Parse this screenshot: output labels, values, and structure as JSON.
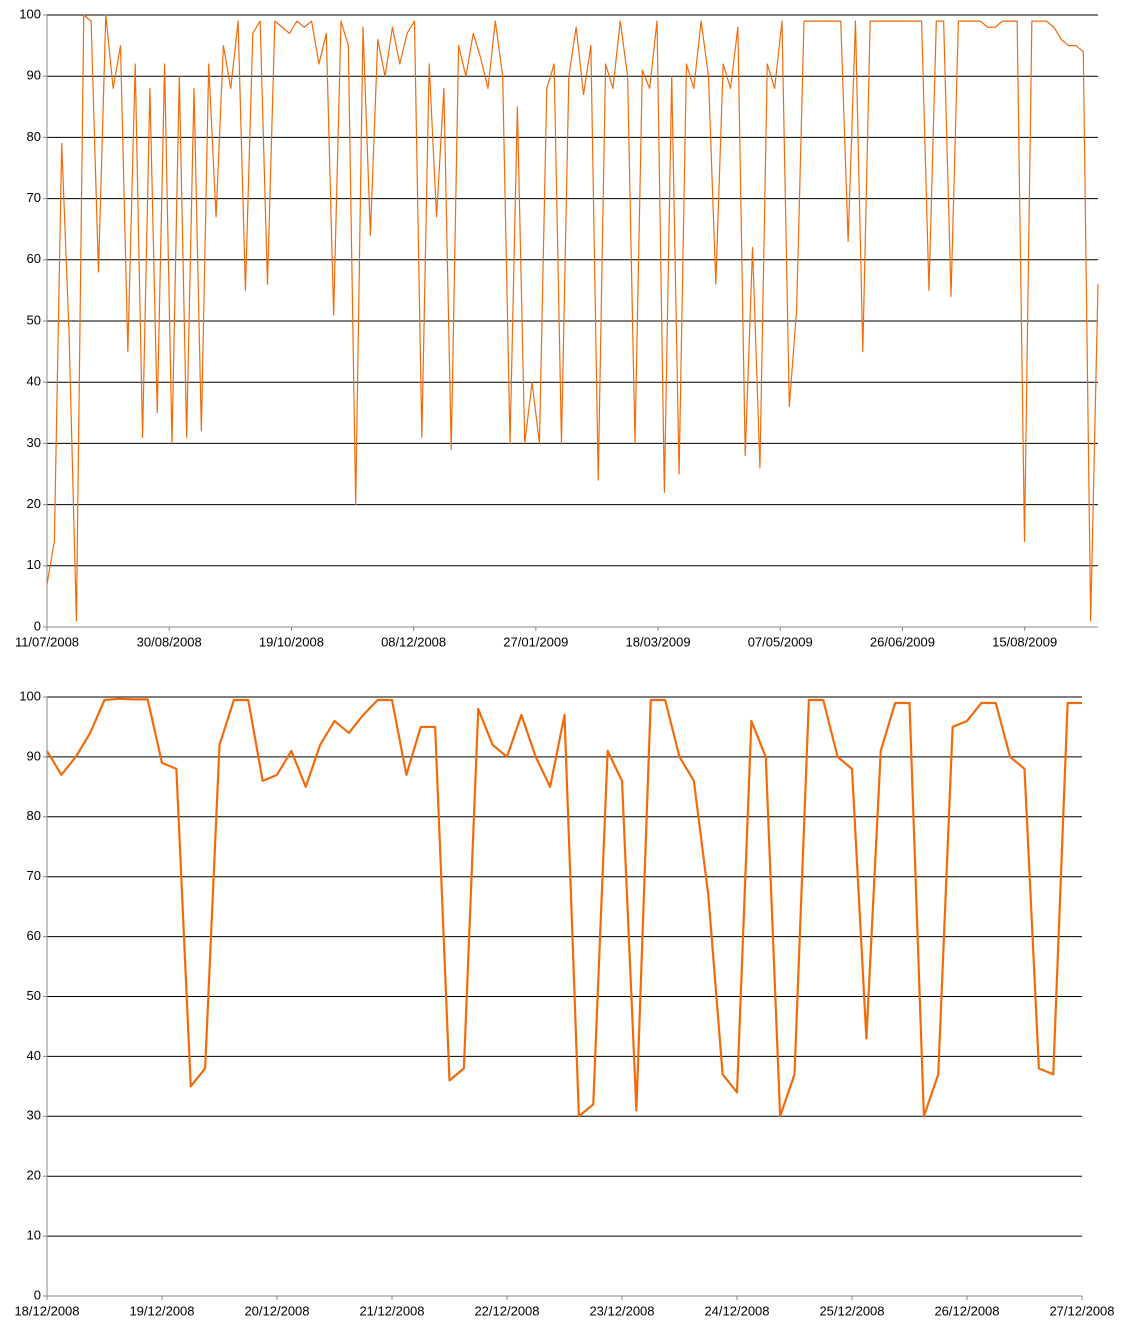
{
  "chart_data": [
    {
      "type": "line",
      "color": "#f26b0a",
      "grid": true,
      "xlim": [
        "11/07/2008",
        "14/09/2009"
      ],
      "xticks": [
        "11/07/2008",
        "30/08/2008",
        "19/10/2008",
        "08/12/2008",
        "27/01/2009",
        "18/03/2009",
        "07/05/2009",
        "26/06/2009",
        "15/08/2009"
      ],
      "ylim": [
        0,
        100
      ],
      "yticks": [
        0,
        10,
        20,
        30,
        40,
        50,
        60,
        70,
        80,
        90,
        100
      ],
      "values": [
        7,
        14,
        79,
        48,
        1,
        100,
        99,
        58,
        100,
        88,
        95,
        45,
        92,
        31,
        88,
        35,
        92,
        30,
        90,
        31,
        88,
        32,
        92,
        67,
        95,
        88,
        99,
        55,
        97,
        99,
        56,
        99,
        98,
        97,
        99,
        98,
        99,
        92,
        97,
        51,
        99,
        95,
        20,
        98,
        64,
        96,
        90,
        98,
        92,
        97,
        99,
        31,
        92,
        67,
        88,
        29,
        95,
        90,
        97,
        93,
        88,
        99,
        90,
        30,
        85,
        30,
        40,
        30,
        88,
        92,
        30,
        90,
        98,
        87,
        95,
        24,
        92,
        88,
        99,
        90,
        30,
        91,
        88,
        99,
        22,
        90,
        25,
        92,
        88,
        99,
        90,
        56,
        92,
        88,
        98,
        28,
        62,
        26,
        92,
        88,
        99,
        36,
        52,
        99,
        99,
        99,
        99,
        99,
        99,
        63,
        99,
        45,
        99,
        99,
        99,
        99,
        99,
        99,
        99,
        99,
        55,
        99,
        99,
        54,
        99,
        99,
        99,
        99,
        98,
        98,
        99,
        99,
        99,
        14,
        99,
        99,
        99,
        98,
        96,
        95,
        95,
        94,
        1,
        56
      ]
    },
    {
      "type": "line",
      "color": "#f26b0a",
      "grid": true,
      "xlim": [
        "18/12/2008",
        "27/12/2008"
      ],
      "xticks": [
        "18/12/2008",
        "19/12/2008",
        "20/12/2008",
        "21/12/2008",
        "22/12/2008",
        "23/12/2008",
        "24/12/2008",
        "25/12/2008",
        "26/12/2008",
        "27/12/2008"
      ],
      "ylim": [
        0,
        100
      ],
      "yticks": [
        0,
        10,
        20,
        30,
        40,
        50,
        60,
        70,
        80,
        90,
        100
      ],
      "values": [
        91,
        87,
        90,
        94,
        99.5,
        99.7,
        99.6,
        99.6,
        89,
        88,
        35,
        38,
        92,
        99.5,
        99.5,
        86,
        87,
        91,
        85,
        92,
        96,
        94,
        97,
        99.5,
        99.5,
        87,
        95,
        95,
        36,
        38,
        98,
        92,
        90,
        97,
        90,
        85,
        97,
        30,
        32,
        91,
        86,
        31,
        99.5,
        99.5,
        90,
        86,
        67,
        37,
        34,
        96,
        90,
        30,
        37,
        99.5,
        99.5,
        90,
        88,
        43,
        91,
        99,
        99,
        30,
        37,
        95,
        96,
        99,
        99,
        90,
        88,
        38,
        37,
        99,
        99
      ]
    }
  ]
}
